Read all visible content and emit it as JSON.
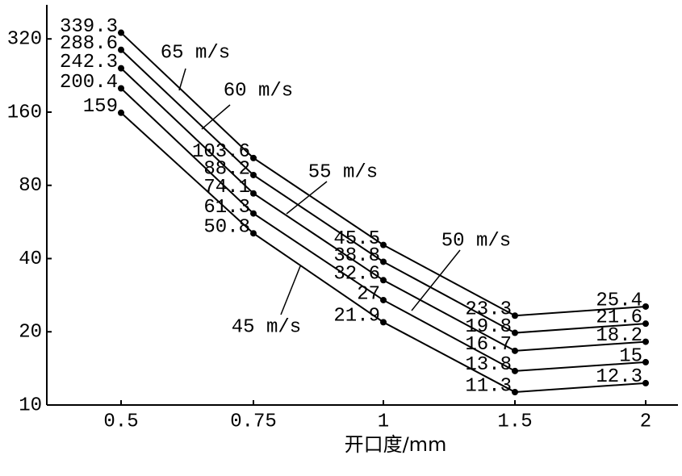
{
  "chart_data": {
    "type": "line",
    "x_label": "开口度/mm",
    "categories": [
      "0.5",
      "0.75",
      "1",
      "1.5",
      "2"
    ],
    "series": [
      {
        "name": "65 m/s",
        "color": "#000000",
        "values": [
          339.3,
          103.6,
          45.5,
          23.3,
          25.4
        ]
      },
      {
        "name": "60 m/s",
        "color": "#000000",
        "values": [
          288.6,
          88.2,
          38.8,
          19.8,
          21.6
        ]
      },
      {
        "name": "55 m/s",
        "color": "#000000",
        "values": [
          242.3,
          74.1,
          32.6,
          16.7,
          18.2
        ]
      },
      {
        "name": "50 m/s",
        "color": "#000000",
        "values": [
          200.4,
          61.3,
          27,
          13.8,
          15
        ]
      },
      {
        "name": "45 m/s",
        "color": "#000000",
        "values": [
          159,
          50.8,
          21.9,
          11.3,
          12.3
        ]
      }
    ],
    "ylim": [
      10,
      400
    ],
    "yticks": [
      10,
      20,
      40,
      80,
      160,
      320
    ],
    "log_y": true
  }
}
